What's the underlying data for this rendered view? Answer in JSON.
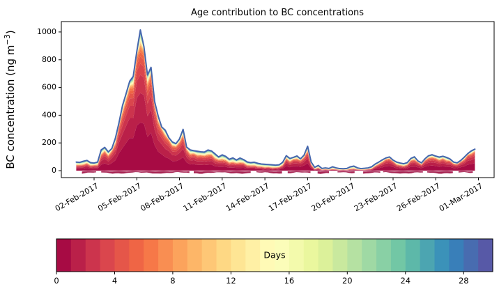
{
  "chart_data": {
    "type": "stacked_area",
    "title": "Age contribution to BC concentrations",
    "ylabel": "BC concentration (ng m⁻³)",
    "ylabel_parts": {
      "pre": "BC concentration (ng m",
      "sup": "−3",
      "post": ")"
    },
    "xlabel": "",
    "grid": false,
    "legend": "colorbar",
    "xlim_days": [
      -1.3,
      29.1
    ],
    "ylim": [
      -50,
      1075
    ],
    "yticks": [
      0,
      200,
      400,
      600,
      800,
      1000
    ],
    "xticks": {
      "labels": [
        "02-Feb-2017",
        "05-Feb-2017",
        "08-Feb-2017",
        "11-Feb-2017",
        "14-Feb-2017",
        "17-Feb-2017",
        "20-Feb-2017",
        "23-Feb-2017",
        "26-Feb-2017",
        "01-Mar-2017"
      ],
      "day_positions": [
        1,
        4,
        7,
        10,
        13,
        16,
        19,
        22,
        25,
        28
      ]
    },
    "x_axis_epoch": "01-Feb-2017 00:00",
    "x_start_day": -0.25,
    "x_step_days": 0.25,
    "total_bc": [
      62,
      60,
      68,
      74,
      58,
      55,
      62,
      150,
      168,
      135,
      160,
      235,
      345,
      470,
      555,
      645,
      680,
      860,
      1015,
      895,
      690,
      745,
      500,
      395,
      315,
      292,
      238,
      207,
      195,
      228,
      298,
      170,
      150,
      144,
      140,
      136,
      134,
      149,
      142,
      121,
      99,
      114,
      103,
      82,
      92,
      77,
      91,
      80,
      63,
      58,
      61,
      53,
      48,
      46,
      44,
      42,
      40,
      42,
      60,
      108,
      88,
      96,
      106,
      85,
      112,
      176,
      62,
      24,
      38,
      16,
      20,
      16,
      28,
      20,
      15,
      14,
      16,
      28,
      33,
      20,
      15,
      17,
      20,
      28,
      48,
      62,
      78,
      92,
      99,
      76,
      62,
      55,
      50,
      58,
      88,
      100,
      70,
      56,
      86,
      108,
      115,
      105,
      98,
      104,
      96,
      84,
      62,
      56,
      73,
      97,
      123,
      143,
      155
    ],
    "n_age_bands": 30,
    "age_range_days": [
      0,
      30
    ],
    "young_age_fraction_keyframes": [
      [
        -0.25,
        0.55
      ],
      [
        1.3,
        0.6
      ],
      [
        1.6,
        0.75
      ],
      [
        2.3,
        0.82
      ],
      [
        3.0,
        0.9
      ],
      [
        5.2,
        0.92
      ],
      [
        6.5,
        0.87
      ],
      [
        7.4,
        0.85
      ],
      [
        7.8,
        0.78
      ],
      [
        9.5,
        0.7
      ],
      [
        10.5,
        0.6
      ],
      [
        11.5,
        0.55
      ],
      [
        12.5,
        0.46
      ],
      [
        13.8,
        0.4
      ],
      [
        14.5,
        0.72
      ],
      [
        15.9,
        0.85
      ],
      [
        16.5,
        0.4
      ],
      [
        17.2,
        0.28
      ],
      [
        19.0,
        0.24
      ],
      [
        20.3,
        0.32
      ],
      [
        21.0,
        0.72
      ],
      [
        21.8,
        0.9
      ],
      [
        22.6,
        0.55
      ],
      [
        23.3,
        0.78
      ],
      [
        24.5,
        0.82
      ],
      [
        25.6,
        0.74
      ],
      [
        26.6,
        0.8
      ],
      [
        27.6,
        0.88
      ],
      [
        27.75,
        0.85
      ]
    ],
    "young_age_decay_days": 2.0,
    "total_line_color": "#4566ad",
    "baseline_band": {
      "color": "#9e0f42",
      "value_range": [
        -26,
        -3
      ],
      "segments": [
        [
          0.15,
          1.2
        ],
        [
          1.5,
          7.7
        ],
        [
          8.0,
          12.1
        ],
        [
          12.4,
          14.3
        ],
        [
          14.6,
          16.2
        ],
        [
          16.7,
          17.5
        ],
        [
          18.1,
          19.4
        ],
        [
          19.9,
          21.1
        ],
        [
          21.3,
          24.1
        ],
        [
          24.4,
          26.3
        ],
        [
          26.6,
          27.75
        ]
      ]
    },
    "colormap": {
      "name": "Spectral",
      "anchors": [
        "#9e0142",
        "#d53e4f",
        "#f46d43",
        "#fdae61",
        "#fee08b",
        "#ffffbf",
        "#e6f598",
        "#abdda4",
        "#66c2a5",
        "#3288bd",
        "#5e4fa2"
      ]
    }
  },
  "colorbar": {
    "label": "Days",
    "ticks": [
      0,
      4,
      8,
      12,
      16,
      20,
      24,
      28
    ],
    "vmin": 0,
    "vmax": 30,
    "n_segments": 30
  }
}
